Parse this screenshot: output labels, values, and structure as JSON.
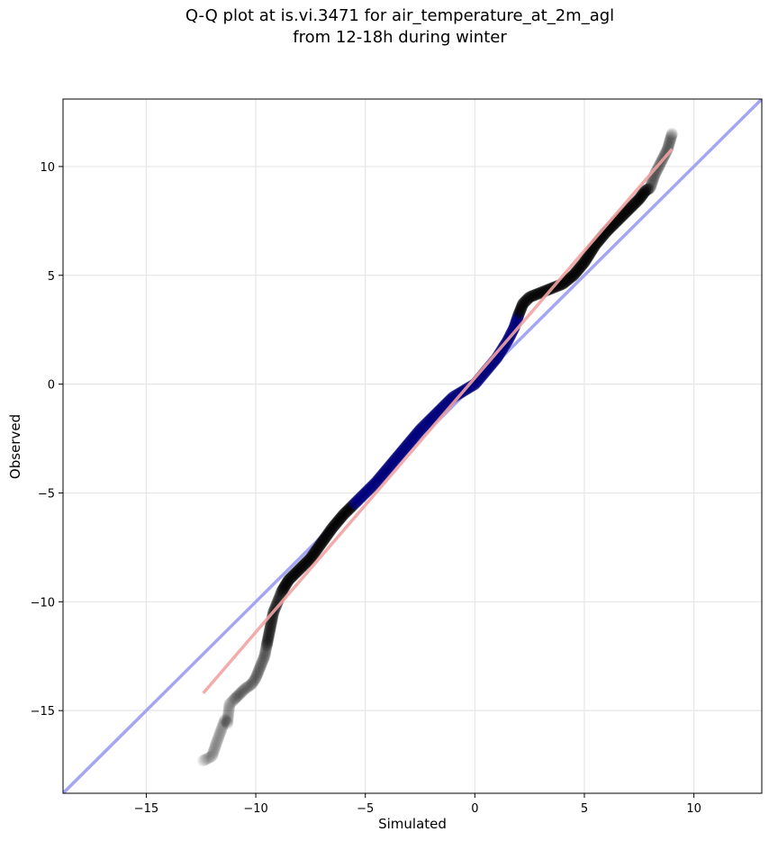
{
  "chart_data": {
    "type": "scatter",
    "title_line1": "Q-Q plot at is.vi.3471 for air_temperature_at_2m_agl",
    "title_line2": "from 12-18h during winter",
    "xlabel": "Simulated",
    "ylabel": "Observed",
    "xlim": [
      -18.8,
      13.1
    ],
    "ylim": [
      -18.8,
      13.1
    ],
    "xticks": [
      -15,
      -10,
      -5,
      0,
      5,
      10
    ],
    "yticks": [
      -15,
      -10,
      -5,
      0,
      5,
      10
    ],
    "xtick_labels": [
      "−15",
      "−10",
      "−5",
      "0",
      "5",
      "10"
    ],
    "ytick_labels": [
      "−15",
      "−10",
      "−5",
      "0",
      "5",
      "10"
    ],
    "grid": true,
    "reference_line": {
      "style": "1:1 identity",
      "color": "#a3a7f2"
    },
    "fit_line": {
      "x": [
        -12.4,
        9.0
      ],
      "y": [
        -14.2,
        10.8
      ],
      "color": "#f2a3a3"
    },
    "point_color": "#000000",
    "central_color": "#00007a",
    "quantiles": {
      "x": [
        -12.4,
        -12.0,
        -11.8,
        -11.4,
        -11.3,
        -11.2,
        -10.8,
        -10.5,
        -10.2,
        -10.0,
        -9.8,
        -9.6,
        -9.5,
        -9.4,
        -9.3,
        -9.2,
        -9.0,
        -8.8,
        -8.5,
        -8.0,
        -7.5,
        -7.0,
        -6.5,
        -6.0,
        -5.5,
        -5.0,
        -4.5,
        -4.0,
        -3.5,
        -3.0,
        -2.5,
        -2.0,
        -1.5,
        -1.0,
        -0.5,
        0.0,
        0.5,
        1.0,
        1.5,
        1.8,
        2.0,
        2.2,
        2.5,
        3.0,
        3.5,
        4.0,
        4.5,
        5.0,
        5.5,
        6.0,
        6.5,
        7.0,
        7.5,
        7.8,
        8.0,
        8.2,
        8.5,
        8.8,
        9.0
      ],
      "y": [
        -17.3,
        -17.1,
        -16.5,
        -15.4,
        -15.6,
        -14.7,
        -14.3,
        -14.0,
        -13.8,
        -13.5,
        -13.0,
        -12.5,
        -12.0,
        -11.5,
        -11.0,
        -10.5,
        -10.0,
        -9.5,
        -9.0,
        -8.5,
        -8.0,
        -7.3,
        -6.6,
        -6.0,
        -5.5,
        -5.0,
        -4.5,
        -3.9,
        -3.3,
        -2.7,
        -2.1,
        -1.6,
        -1.1,
        -0.6,
        -0.3,
        0.0,
        0.6,
        1.2,
        2.0,
        2.6,
        3.2,
        3.7,
        4.0,
        4.2,
        4.4,
        4.6,
        5.0,
        5.6,
        6.4,
        7.0,
        7.5,
        8.0,
        8.5,
        8.9,
        9.0,
        9.6,
        10.2,
        10.8,
        11.5
      ]
    }
  }
}
